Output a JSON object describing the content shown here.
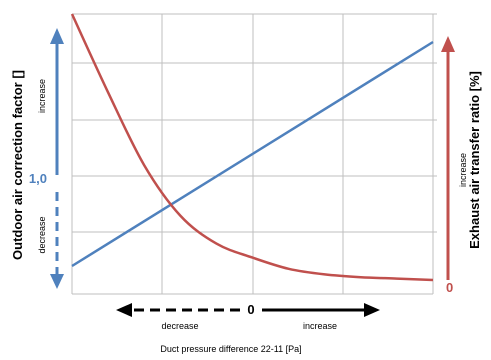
{
  "chart_data": {
    "type": "line",
    "title": "",
    "xlabel": "Duct pressure difference 22-11 [Pa]",
    "ylabel_left": "Outdoor air correction factor []",
    "ylabel_right": "Exhaust air transfer ratio [%]",
    "x_axis": {
      "zero_label": "0",
      "decrease_label": "decrease",
      "increase_label": "increase",
      "range": [
        -1,
        1
      ]
    },
    "y_left": {
      "value_label": "1,0",
      "increase_label": "increase",
      "decrease_label": "decrease",
      "range": [
        0,
        2
      ]
    },
    "y_right": {
      "zero_label": "0",
      "increase_label": "increase",
      "range": [
        0,
        100
      ]
    },
    "grid": true,
    "series": [
      {
        "name": "",
        "color": "#4f81bd",
        "axis": "left",
        "x": [
          -1,
          1
        ],
        "y": [
          0.2,
          1.8
        ]
      },
      {
        "name": "",
        "color": "#c0504d",
        "axis": "right",
        "x": [
          -1,
          -0.8,
          -0.6,
          -0.4,
          -0.2,
          0,
          0.2,
          0.4,
          0.6,
          0.8,
          1
        ],
        "y": [
          100,
          72,
          46,
          28,
          18,
          13,
          9,
          7,
          6,
          5.5,
          5
        ]
      }
    ]
  }
}
